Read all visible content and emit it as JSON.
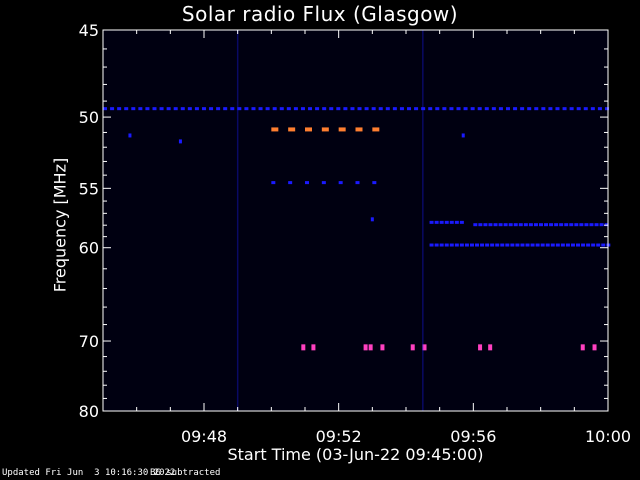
{
  "chart_data": {
    "type": "heatmap",
    "title": "Solar radio Flux (Glasgow)",
    "xlabel": "Start Time (03-Jun-22 09:45:00)",
    "ylabel": "Frequency [MHz]",
    "x_range_min": [
      0,
      15
    ],
    "y_range_mhz": [
      45,
      80
    ],
    "x_tick_labels": [
      "09:48",
      "09:52",
      "09:56",
      "10:00"
    ],
    "x_tick_minutes": [
      3,
      7,
      11,
      15
    ],
    "y_tick_labels": [
      "45",
      "50",
      "55",
      "60",
      "70",
      "80"
    ],
    "y_tick_mhz": [
      45,
      50,
      55,
      60,
      70,
      80
    ],
    "colors": {
      "background": "#000011",
      "weak": "#1a1aff",
      "medium": "#8000a0",
      "strong": "#ff7f30",
      "hot": "#ff40c0"
    },
    "features": [
      {
        "kind": "dashed_line",
        "mhz": 49.5,
        "t_start": 0,
        "t_end": 15,
        "level": "weak",
        "period": 0.21
      },
      {
        "kind": "dashed_line",
        "mhz": 50.8,
        "t_start": 5,
        "t_end": 8.2,
        "level": "strong",
        "period": 0.5
      },
      {
        "kind": "dashed_line",
        "mhz": 54.6,
        "t_start": 5,
        "t_end": 8.2,
        "level": "weak",
        "period": 0.5
      },
      {
        "kind": "dashed_line",
        "mhz": 57.8,
        "t_start": 9.7,
        "t_end": 10.7,
        "level": "weak",
        "period": 0.15
      },
      {
        "kind": "dashed_line",
        "mhz": 59.8,
        "t_start": 9.7,
        "t_end": 15,
        "level": "weak",
        "period": 0.15
      },
      {
        "kind": "dashed_line",
        "mhz": 58.0,
        "t_start": 11,
        "t_end": 15,
        "level": "weak",
        "period": 0.15
      },
      {
        "kind": "dots",
        "mhz": 70.8,
        "t": [
          5.95,
          6.25,
          7.8,
          7.95,
          8.3,
          9.2,
          9.55,
          11.2,
          11.5,
          14.25,
          14.6
        ],
        "level": "hot"
      },
      {
        "kind": "vline",
        "t": 4.0,
        "level": "weak"
      },
      {
        "kind": "vline",
        "t": 9.5,
        "level": "weak"
      },
      {
        "kind": "blip",
        "mhz": 51.2,
        "t": 0.8,
        "level": "weak"
      },
      {
        "kind": "blip",
        "mhz": 51.6,
        "t": 2.3,
        "level": "weak"
      },
      {
        "kind": "blip",
        "mhz": 51.2,
        "t": 10.7,
        "level": "weak"
      },
      {
        "kind": "blip",
        "mhz": 57.5,
        "t": 8.0,
        "level": "weak"
      }
    ]
  },
  "footer": {
    "updated": "Updated Fri Jun  3 10:16:30 2022",
    "note": "BG subtracted"
  }
}
